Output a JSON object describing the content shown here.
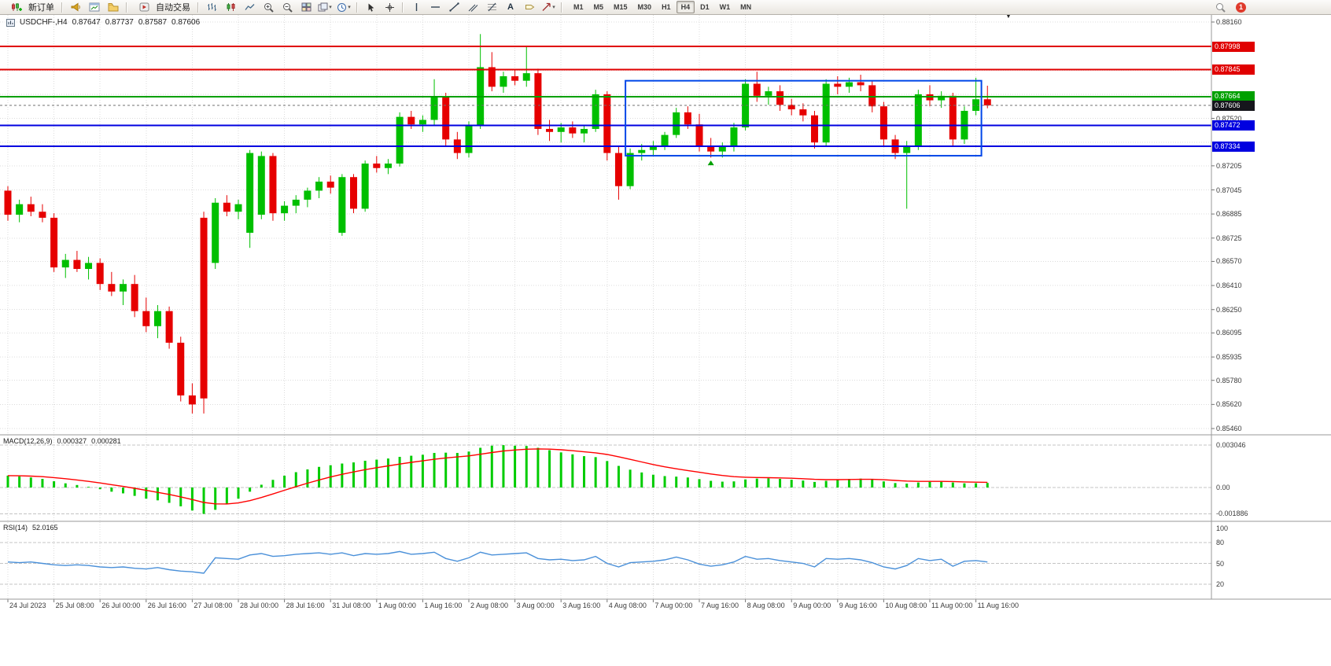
{
  "toolbar": {
    "new_order_label": "新订单",
    "autotrading_label": "自动交易",
    "text_icon_glyph": "A",
    "timeframes": [
      "M1",
      "M5",
      "M15",
      "M30",
      "H1",
      "H4",
      "D1",
      "W1",
      "MN"
    ],
    "active_timeframe": "H4",
    "notification_count": "1"
  },
  "glyphs": {
    "caret": "▾",
    "shift_marker": "▼"
  },
  "chart_header": {
    "symbol_period": "USDCHF-,H4",
    "open": "0.87647",
    "high": "0.87737",
    "low": "0.87587",
    "close": "0.87606"
  },
  "indicators": {
    "macd_label": "MACD(12,26,9)",
    "macd_value": "0.000327",
    "macd_signal": "0.000281",
    "rsi_label": "RSI(14)",
    "rsi_value": "52.0165"
  },
  "price_axis": {
    "plain_labels": [
      0.8816,
      0.8752,
      0.87205,
      0.87045,
      0.86885,
      0.86725,
      0.8657,
      0.8641,
      0.8625,
      0.86095,
      0.85935,
      0.8578,
      0.8562,
      0.8546
    ],
    "tags": [
      {
        "text": "0.87998",
        "price": 0.87998,
        "color": "#e00000"
      },
      {
        "text": "0.87845",
        "price": 0.87845,
        "color": "#e00000"
      },
      {
        "text": "0.87664",
        "price": 0.87664,
        "color": "#00a000"
      },
      {
        "text": "0.87606",
        "price": 0.87606,
        "color": "#16161c"
      },
      {
        "text": "0.87472",
        "price": 0.87472,
        "color": "#0000e0"
      },
      {
        "text": "0.87334",
        "price": 0.87334,
        "color": "#0000e0"
      }
    ]
  },
  "macd_axis": [
    "0.003046",
    "0.00",
    "-0.001886"
  ],
  "rsi_axis": [
    "100",
    "80",
    "50",
    "20"
  ],
  "time_axis": [
    "24 Jul 2023",
    "25 Jul 08:00",
    "26 Jul 00:00",
    "26 Jul 16:00",
    "27 Jul 08:00",
    "28 Jul 00:00",
    "28 Jul 16:00",
    "31 Jul 08:00",
    "1 Aug 00:00",
    "1 Aug 16:00",
    "2 Aug 08:00",
    "3 Aug 00:00",
    "3 Aug 16:00",
    "4 Aug 08:00",
    "7 Aug 00:00",
    "7 Aug 16:00",
    "8 Aug 08:00",
    "9 Aug 00:00",
    "9 Aug 16:00",
    "10 Aug 08:00",
    "11 Aug 00:00",
    "11 Aug 16:00"
  ],
  "chart_data": {
    "type": "candlestick",
    "symbol": "USDCHF-",
    "period": "H4",
    "price_range": {
      "max": 0.8816,
      "min": 0.8546
    },
    "grid_prices": [
      0.8816,
      0.88,
      0.8784,
      0.8768,
      0.8752,
      0.8736,
      0.87205,
      0.87045,
      0.86885,
      0.86725,
      0.8657,
      0.8641,
      0.8625,
      0.86095,
      0.85935,
      0.8578,
      0.8562,
      0.8546
    ],
    "candles": [
      [
        0.8704,
        0.8707,
        0.8684,
        0.8688
      ],
      [
        0.8688,
        0.8698,
        0.8683,
        0.8695
      ],
      [
        0.8695,
        0.87,
        0.8687,
        0.869
      ],
      [
        0.869,
        0.8695,
        0.8683,
        0.8686
      ],
      [
        0.8686,
        0.8689,
        0.865,
        0.8653
      ],
      [
        0.8653,
        0.8662,
        0.8646,
        0.8658
      ],
      [
        0.8658,
        0.8664,
        0.865,
        0.8652
      ],
      [
        0.8652,
        0.866,
        0.8645,
        0.8656
      ],
      [
        0.8656,
        0.8659,
        0.8638,
        0.8642
      ],
      [
        0.8642,
        0.865,
        0.8634,
        0.8637
      ],
      [
        0.8637,
        0.8645,
        0.8628,
        0.8642
      ],
      [
        0.8642,
        0.8648,
        0.862,
        0.8624
      ],
      [
        0.8624,
        0.8633,
        0.861,
        0.8614
      ],
      [
        0.8614,
        0.8628,
        0.8606,
        0.8624
      ],
      [
        0.8624,
        0.8627,
        0.8599,
        0.8603
      ],
      [
        0.8603,
        0.8607,
        0.8564,
        0.8568
      ],
      [
        0.8568,
        0.8576,
        0.8556,
        0.8562
      ],
      [
        0.8686,
        0.869,
        0.8556,
        0.8566
      ],
      [
        0.8656,
        0.8699,
        0.8652,
        0.8696
      ],
      [
        0.8696,
        0.8701,
        0.8687,
        0.869
      ],
      [
        0.869,
        0.8698,
        0.8685,
        0.8695
      ],
      [
        0.8676,
        0.8731,
        0.8666,
        0.8729
      ],
      [
        0.8688,
        0.873,
        0.8685,
        0.8727
      ],
      [
        0.8727,
        0.8729,
        0.8684,
        0.8689
      ],
      [
        0.8689,
        0.8697,
        0.8684,
        0.8694
      ],
      [
        0.8694,
        0.8701,
        0.8689,
        0.8698
      ],
      [
        0.8698,
        0.8706,
        0.8693,
        0.8704
      ],
      [
        0.8704,
        0.8713,
        0.8699,
        0.871
      ],
      [
        0.871,
        0.8714,
        0.8702,
        0.8706
      ],
      [
        0.8676,
        0.8715,
        0.8674,
        0.8713
      ],
      [
        0.8713,
        0.8715,
        0.8689,
        0.8692
      ],
      [
        0.8692,
        0.8724,
        0.869,
        0.8722
      ],
      [
        0.8722,
        0.8727,
        0.8716,
        0.8719
      ],
      [
        0.8719,
        0.8725,
        0.8715,
        0.8722
      ],
      [
        0.8722,
        0.8756,
        0.872,
        0.8753
      ],
      [
        0.8753,
        0.8757,
        0.8745,
        0.8748
      ],
      [
        0.8748,
        0.8754,
        0.8743,
        0.8751
      ],
      [
        0.8751,
        0.8778,
        0.8747,
        0.8766
      ],
      [
        0.8766,
        0.8769,
        0.8734,
        0.8738
      ],
      [
        0.8738,
        0.8743,
        0.8725,
        0.8729
      ],
      [
        0.8729,
        0.875,
        0.8726,
        0.8747
      ],
      [
        0.8747,
        0.8808,
        0.8745,
        0.8786
      ],
      [
        0.8786,
        0.8796,
        0.877,
        0.8773
      ],
      [
        0.8773,
        0.8783,
        0.8769,
        0.878
      ],
      [
        0.878,
        0.8784,
        0.8774,
        0.8777
      ],
      [
        0.8777,
        0.88,
        0.8773,
        0.8782
      ],
      [
        0.8782,
        0.8785,
        0.8741,
        0.8745
      ],
      [
        0.8745,
        0.8751,
        0.8737,
        0.8743
      ],
      [
        0.8743,
        0.8749,
        0.8736,
        0.8746
      ],
      [
        0.8746,
        0.875,
        0.8739,
        0.8742
      ],
      [
        0.8742,
        0.8747,
        0.8736,
        0.8745
      ],
      [
        0.8745,
        0.8771,
        0.8743,
        0.8768
      ],
      [
        0.8768,
        0.877,
        0.8724,
        0.8729
      ],
      [
        0.8729,
        0.8734,
        0.8698,
        0.8707
      ],
      [
        0.8707,
        0.8732,
        0.8705,
        0.8729
      ],
      [
        0.8729,
        0.8735,
        0.8724,
        0.8731
      ],
      [
        0.8731,
        0.8737,
        0.8727,
        0.8734
      ],
      [
        0.8734,
        0.8743,
        0.8731,
        0.8741
      ],
      [
        0.8741,
        0.8759,
        0.8739,
        0.8756
      ],
      [
        0.8756,
        0.876,
        0.8745,
        0.8748
      ],
      [
        0.8748,
        0.8755,
        0.873,
        0.8734
      ],
      [
        0.8734,
        0.8739,
        0.8726,
        0.873
      ],
      [
        0.873,
        0.8736,
        0.8726,
        0.8733
      ],
      [
        0.8733,
        0.8749,
        0.873,
        0.8746
      ],
      [
        0.8746,
        0.8778,
        0.8744,
        0.8775
      ],
      [
        0.8775,
        0.8783,
        0.8763,
        0.8767
      ],
      [
        0.8767,
        0.8773,
        0.8761,
        0.877
      ],
      [
        0.877,
        0.8774,
        0.8757,
        0.8761
      ],
      [
        0.8761,
        0.8765,
        0.8754,
        0.8758
      ],
      [
        0.8758,
        0.8762,
        0.875,
        0.8754
      ],
      [
        0.8754,
        0.8757,
        0.8732,
        0.8736
      ],
      [
        0.8736,
        0.8778,
        0.8734,
        0.8775
      ],
      [
        0.8775,
        0.878,
        0.8768,
        0.8773
      ],
      [
        0.8773,
        0.8779,
        0.8769,
        0.8776
      ],
      [
        0.8776,
        0.8781,
        0.877,
        0.8774
      ],
      [
        0.8774,
        0.8777,
        0.8756,
        0.876
      ],
      [
        0.876,
        0.8763,
        0.8734,
        0.8738
      ],
      [
        0.8738,
        0.8741,
        0.8725,
        0.8729
      ],
      [
        0.8729,
        0.8737,
        0.8692,
        0.8734
      ],
      [
        0.8734,
        0.8771,
        0.8731,
        0.8768
      ],
      [
        0.8768,
        0.8774,
        0.876,
        0.8764
      ],
      [
        0.8764,
        0.877,
        0.8759,
        0.8767
      ],
      [
        0.8767,
        0.8769,
        0.8733,
        0.8738
      ],
      [
        0.8738,
        0.876,
        0.8735,
        0.8757
      ],
      [
        0.8757,
        0.8779,
        0.8754,
        0.87647
      ],
      [
        0.87647,
        0.87737,
        0.87587,
        0.87606
      ]
    ],
    "levels": [
      {
        "name": "resistance-line-1",
        "price": 0.87998,
        "color": "#e00000",
        "w": 2
      },
      {
        "name": "resistance-line-2",
        "price": 0.87845,
        "color": "#e00000",
        "w": 2
      },
      {
        "name": "green-level-line",
        "price": 0.87664,
        "color": "#00a000",
        "w": 2
      },
      {
        "name": "bid-price-line",
        "price": 0.87606,
        "color": "#707070",
        "w": 1,
        "dash": "3,3"
      },
      {
        "name": "support-line-1",
        "price": 0.87472,
        "color": "#0000e0",
        "w": 2
      },
      {
        "name": "support-line-2",
        "price": 0.87334,
        "color": "#0000e0",
        "w": 2
      }
    ],
    "rect": {
      "i1": 54,
      "i2": 84,
      "top": 0.8777,
      "bottom": 0.87272
    },
    "marker": {
      "i": 61,
      "price": 0.8724
    },
    "macd": {
      "params": "12,26,9",
      "value": 0.000327,
      "signal": 0.000281,
      "axis_max": 0.003046,
      "axis_min": -0.001886,
      "hist": [
        0.00085,
        0.0008,
        0.00072,
        0.00062,
        0.00045,
        0.0003,
        0.00018,
        5e-05,
        -0.00012,
        -0.0003,
        -0.00042,
        -0.0006,
        -0.0008,
        -0.00092,
        -0.0011,
        -0.00135,
        -0.00165,
        -0.00189,
        -0.0016,
        -0.0012,
        -0.0008,
        -0.0003,
        0.0002,
        0.00055,
        0.00085,
        0.0011,
        0.0013,
        0.00148,
        0.0016,
        0.00172,
        0.0018,
        0.00192,
        0.002,
        0.00208,
        0.0022,
        0.00228,
        0.00235,
        0.00248,
        0.0025,
        0.00248,
        0.00258,
        0.00285,
        0.003,
        0.00304,
        0.003,
        0.00298,
        0.00285,
        0.00268,
        0.00252,
        0.00238,
        0.00225,
        0.00218,
        0.0019,
        0.00155,
        0.00128,
        0.00108,
        0.00092,
        0.00082,
        0.00078,
        0.00072,
        0.0006,
        0.00048,
        0.00042,
        0.00044,
        0.00058,
        0.00064,
        0.00066,
        0.00062,
        0.00056,
        0.0005,
        0.0004,
        0.00048,
        0.00056,
        0.00062,
        0.00064,
        0.00058,
        0.00044,
        0.00032,
        0.00028,
        0.00036,
        0.00042,
        0.00046,
        0.00036,
        0.0003,
        0.00031,
        0.000327
      ]
    },
    "rsi": {
      "period": 14,
      "value": 52.0165,
      "levels": [
        80,
        50,
        20
      ],
      "values": [
        52,
        51,
        52,
        50,
        48,
        47,
        48,
        47,
        45,
        44,
        45,
        43,
        42,
        44,
        41,
        39,
        38,
        36,
        58,
        57,
        56,
        62,
        64,
        60,
        61,
        63,
        64,
        65,
        63,
        65,
        61,
        64,
        63,
        64,
        67,
        63,
        64,
        66,
        57,
        53,
        58,
        66,
        62,
        63,
        64,
        65,
        57,
        55,
        56,
        54,
        55,
        60,
        50,
        45,
        51,
        52,
        53,
        55,
        59,
        55,
        49,
        46,
        48,
        52,
        60,
        56,
        57,
        54,
        52,
        50,
        45,
        57,
        56,
        57,
        55,
        51,
        45,
        42,
        47,
        57,
        54,
        56,
        46,
        53,
        54,
        52
      ],
      "line_color": "#4a90d9"
    },
    "colors": {
      "bull": "#00bf00",
      "bear": "#e60000",
      "macd_hist": "#00cc00",
      "macd_signal": "#ff0000",
      "rsi": "#4a90d9",
      "box": "#0047e8",
      "grid": "#dcdcdc"
    }
  }
}
